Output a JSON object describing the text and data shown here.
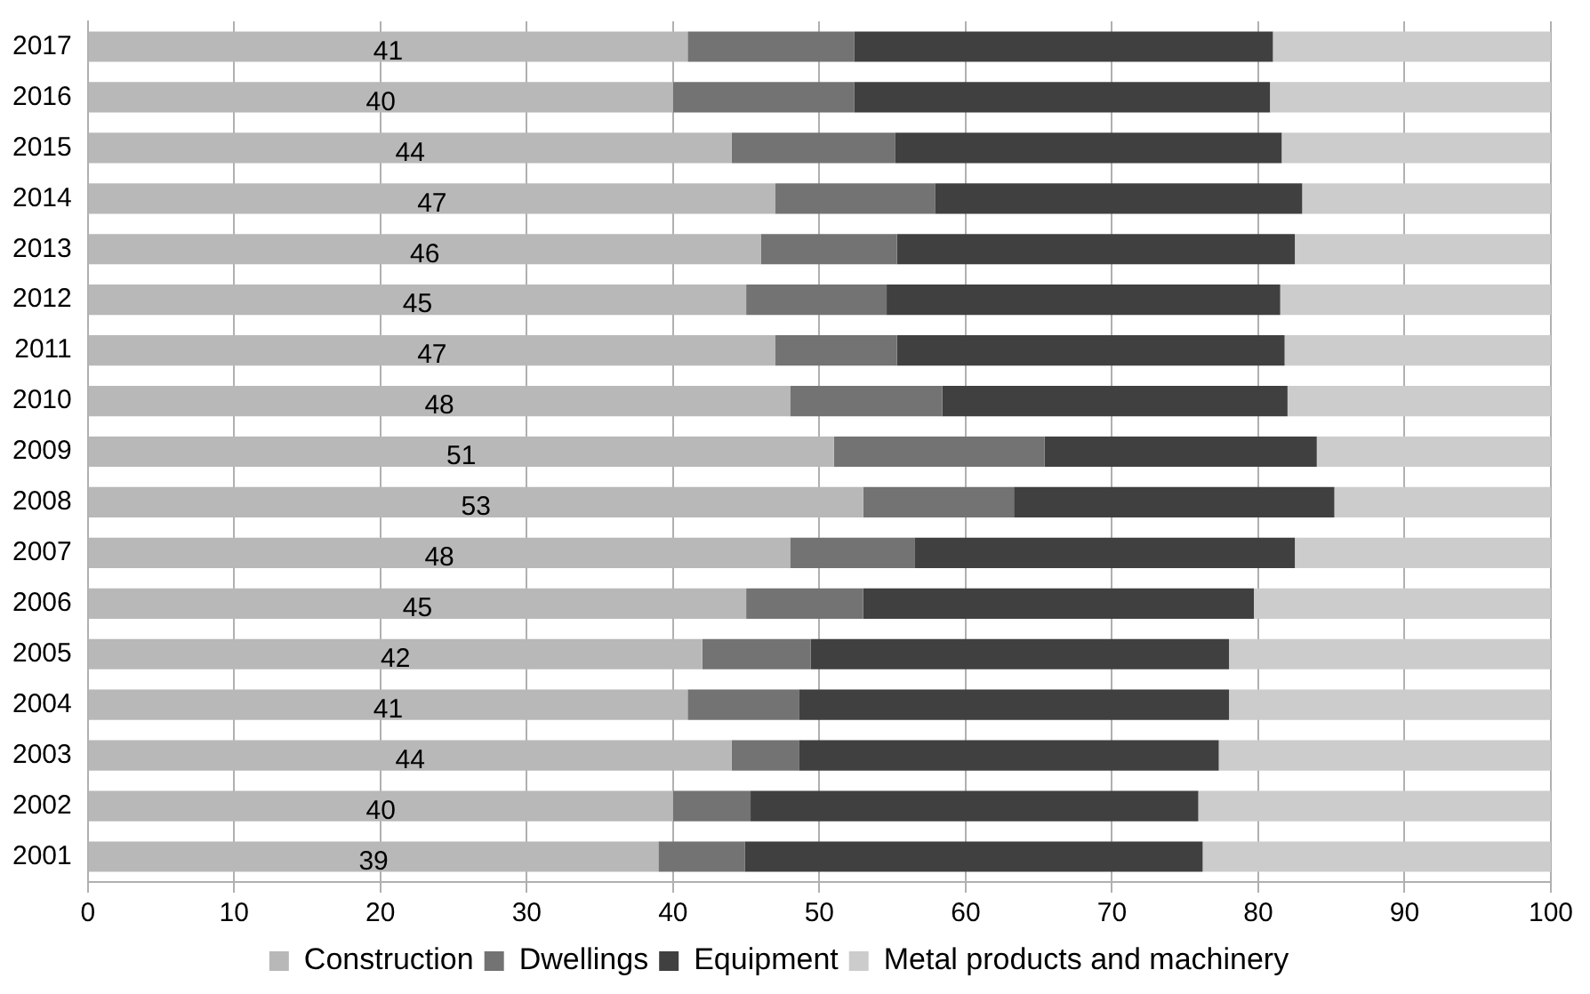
{
  "chart_data": {
    "type": "bar",
    "orientation": "horizontal",
    "stacked": true,
    "categories": [
      "2017",
      "2016",
      "2015",
      "2014",
      "2013",
      "2012",
      "2011",
      "2010",
      "2009",
      "2008",
      "2007",
      "2006",
      "2005",
      "2004",
      "2003",
      "2002",
      "2001"
    ],
    "series": [
      {
        "name": "Construction",
        "color": "#b8b8b8",
        "values": [
          41,
          40,
          44,
          47,
          46,
          45,
          47,
          48,
          51,
          53,
          48,
          45,
          42,
          41,
          44,
          40,
          39
        ],
        "value_labels": [
          "41",
          "40",
          "44",
          "47",
          "46",
          "45",
          "47",
          "48",
          "51",
          "53",
          "48",
          "45",
          "42",
          "41",
          "44",
          "40",
          "39"
        ]
      },
      {
        "name": "Dwellings",
        "color": "#737373",
        "values": [
          11.4,
          12.4,
          11.2,
          10.9,
          9.3,
          9.6,
          8.3,
          10.4,
          14.4,
          10.3,
          8.5,
          8,
          7.4,
          7.6,
          4.6,
          5.3,
          5.9
        ]
      },
      {
        "name": "Equipment",
        "color": "#404040",
        "values": [
          28.6,
          28.4,
          26.4,
          25.1,
          27.2,
          26.9,
          26.5,
          23.6,
          18.6,
          21.9,
          26,
          26.7,
          28.6,
          29.4,
          28.7,
          30.6,
          31.3
        ]
      },
      {
        "name": "Metal products and machinery",
        "color": "#cccccc",
        "values": [
          19,
          19.2,
          18.4,
          17,
          17.5,
          18.5,
          18.2,
          18,
          16,
          14.8,
          17.5,
          20.3,
          22,
          22,
          22.7,
          24.1,
          23.8
        ]
      }
    ],
    "xlim": [
      0,
      100
    ],
    "xticks": [
      0,
      10,
      20,
      30,
      40,
      50,
      60,
      70,
      80,
      90,
      100
    ],
    "grid": "x",
    "legend": "bottom"
  }
}
